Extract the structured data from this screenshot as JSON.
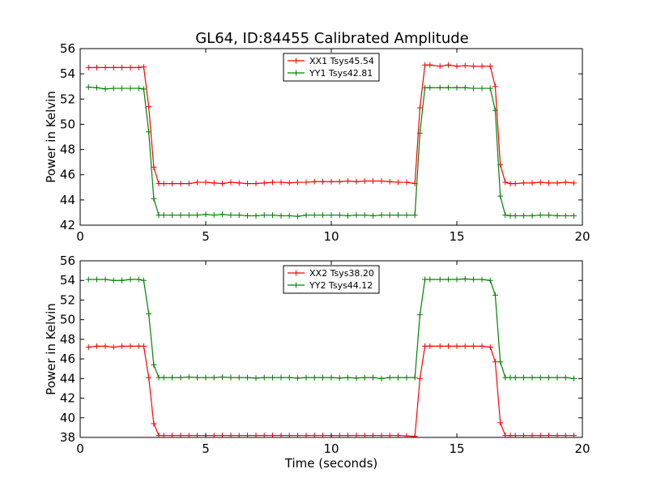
{
  "title": "GL64, ID:84455 Calibrated Amplitude",
  "chart_data": [
    {
      "type": "line",
      "title": "GL64, ID:84455 Calibrated Amplitude",
      "xlabel": "",
      "ylabel": "Power in Kelvin",
      "xlim": [
        0,
        20
      ],
      "ylim": [
        42,
        56
      ],
      "xticks": [
        0,
        5,
        10,
        15,
        20
      ],
      "yticks": [
        42,
        44,
        46,
        48,
        50,
        52,
        54,
        56
      ],
      "legend_position": "upper-center",
      "grid": false,
      "series": [
        {
          "name": "XX1 Tsys45.54",
          "color": "#ff0000",
          "x": [
            0.33,
            0.66,
            1.0,
            1.33,
            1.66,
            2.0,
            2.33,
            2.53,
            2.73,
            2.93,
            3.13,
            3.33,
            3.66,
            4.0,
            4.33,
            4.66,
            5.0,
            5.33,
            5.66,
            6.0,
            6.33,
            6.66,
            7.0,
            7.33,
            7.66,
            8.0,
            8.33,
            8.66,
            9.0,
            9.33,
            9.66,
            10.0,
            10.33,
            10.66,
            11.0,
            11.33,
            11.66,
            12.0,
            12.33,
            12.66,
            13.0,
            13.33,
            13.53,
            13.73,
            13.93,
            14.33,
            14.66,
            15.0,
            15.33,
            15.66,
            16.0,
            16.33,
            16.53,
            16.73,
            16.93,
            17.13,
            17.33,
            17.66,
            18.0,
            18.33,
            18.66,
            19.0,
            19.33,
            19.66
          ],
          "y": [
            54.5,
            54.5,
            54.5,
            54.5,
            54.5,
            54.5,
            54.5,
            54.55,
            51.4,
            46.6,
            45.3,
            45.3,
            45.3,
            45.3,
            45.3,
            45.4,
            45.4,
            45.35,
            45.3,
            45.4,
            45.35,
            45.3,
            45.3,
            45.35,
            45.4,
            45.4,
            45.35,
            45.4,
            45.4,
            45.45,
            45.45,
            45.45,
            45.45,
            45.5,
            45.45,
            45.5,
            45.5,
            45.5,
            45.45,
            45.4,
            45.4,
            45.3,
            51.3,
            54.7,
            54.7,
            54.6,
            54.7,
            54.6,
            54.65,
            54.6,
            54.6,
            54.6,
            53.0,
            46.8,
            45.4,
            45.3,
            45.3,
            45.35,
            45.35,
            45.4,
            45.35,
            45.35,
            45.4,
            45.35
          ]
        },
        {
          "name": "YY1 Tsys42.81",
          "color": "#008000",
          "x": [
            0.33,
            0.66,
            1.0,
            1.33,
            1.66,
            2.0,
            2.33,
            2.53,
            2.73,
            2.93,
            3.13,
            3.33,
            3.66,
            4.0,
            4.33,
            4.66,
            5.0,
            5.33,
            5.66,
            6.0,
            6.33,
            6.66,
            7.0,
            7.33,
            7.66,
            8.0,
            8.33,
            8.66,
            9.0,
            9.33,
            9.66,
            10.0,
            10.33,
            10.66,
            11.0,
            11.33,
            11.66,
            12.0,
            12.33,
            12.66,
            13.0,
            13.33,
            13.53,
            13.73,
            13.93,
            14.33,
            14.66,
            15.0,
            15.33,
            15.66,
            16.0,
            16.33,
            16.53,
            16.73,
            16.93,
            17.13,
            17.33,
            17.66,
            18.0,
            18.33,
            18.66,
            19.0,
            19.33,
            19.66
          ],
          "y": [
            52.95,
            52.9,
            52.8,
            52.85,
            52.85,
            52.85,
            52.85,
            52.8,
            49.4,
            44.1,
            42.8,
            42.8,
            42.8,
            42.8,
            42.8,
            42.8,
            42.85,
            42.8,
            42.85,
            42.8,
            42.8,
            42.75,
            42.75,
            42.8,
            42.8,
            42.75,
            42.75,
            42.7,
            42.8,
            42.8,
            42.8,
            42.8,
            42.8,
            42.75,
            42.8,
            42.8,
            42.75,
            42.8,
            42.8,
            42.8,
            42.8,
            42.8,
            49.3,
            52.9,
            52.9,
            52.9,
            52.9,
            52.9,
            52.9,
            52.85,
            52.85,
            52.85,
            51.1,
            44.3,
            42.8,
            42.75,
            42.75,
            42.75,
            42.75,
            42.8,
            42.8,
            42.75,
            42.75,
            42.75
          ]
        }
      ]
    },
    {
      "type": "line",
      "title": "",
      "xlabel": "Time (seconds)",
      "ylabel": "Power in Kelvin",
      "xlim": [
        0,
        20
      ],
      "ylim": [
        38,
        56
      ],
      "xticks": [
        0,
        5,
        10,
        15,
        20
      ],
      "yticks": [
        38,
        40,
        42,
        44,
        46,
        48,
        50,
        52,
        54,
        56
      ],
      "legend_position": "upper-center",
      "grid": false,
      "series": [
        {
          "name": "XX2 Tsys38.20",
          "color": "#ff0000",
          "x": [
            0.33,
            0.66,
            1.0,
            1.33,
            1.66,
            2.0,
            2.33,
            2.53,
            2.73,
            2.93,
            3.13,
            3.33,
            3.66,
            4.0,
            4.33,
            4.66,
            5.0,
            5.33,
            5.66,
            6.0,
            6.33,
            6.66,
            7.0,
            7.33,
            7.66,
            8.0,
            8.33,
            8.66,
            9.0,
            9.33,
            9.66,
            10.0,
            10.33,
            10.66,
            11.0,
            11.33,
            11.66,
            12.0,
            12.33,
            12.66,
            13.0,
            13.33,
            13.53,
            13.73,
            13.93,
            14.33,
            14.66,
            15.0,
            15.33,
            15.66,
            16.0,
            16.33,
            16.53,
            16.73,
            16.93,
            17.13,
            17.33,
            17.66,
            18.0,
            18.33,
            18.66,
            19.0,
            19.33,
            19.66
          ],
          "y": [
            47.2,
            47.3,
            47.3,
            47.2,
            47.3,
            47.3,
            47.3,
            47.3,
            44.1,
            39.4,
            38.2,
            38.2,
            38.2,
            38.2,
            38.2,
            38.2,
            38.2,
            38.2,
            38.2,
            38.2,
            38.2,
            38.2,
            38.2,
            38.2,
            38.2,
            38.2,
            38.2,
            38.2,
            38.2,
            38.2,
            38.2,
            38.2,
            38.2,
            38.2,
            38.2,
            38.2,
            38.2,
            38.2,
            38.2,
            38.2,
            38.15,
            38.1,
            44.0,
            47.3,
            47.3,
            47.3,
            47.3,
            47.3,
            47.3,
            47.3,
            47.3,
            47.2,
            45.7,
            39.5,
            38.2,
            38.2,
            38.2,
            38.2,
            38.2,
            38.2,
            38.2,
            38.2,
            38.2,
            38.2
          ]
        },
        {
          "name": "YY2 Tsys44.12",
          "color": "#008000",
          "x": [
            0.33,
            0.66,
            1.0,
            1.33,
            1.66,
            2.0,
            2.33,
            2.53,
            2.73,
            2.93,
            3.13,
            3.33,
            3.66,
            4.0,
            4.33,
            4.66,
            5.0,
            5.33,
            5.66,
            6.0,
            6.33,
            6.66,
            7.0,
            7.33,
            7.66,
            8.0,
            8.33,
            8.66,
            9.0,
            9.33,
            9.66,
            10.0,
            10.33,
            10.66,
            11.0,
            11.33,
            11.66,
            12.0,
            12.33,
            12.66,
            13.0,
            13.33,
            13.53,
            13.73,
            13.93,
            14.33,
            14.66,
            15.0,
            15.33,
            15.66,
            16.0,
            16.33,
            16.53,
            16.73,
            16.93,
            17.13,
            17.33,
            17.66,
            18.0,
            18.33,
            18.66,
            19.0,
            19.33,
            19.66
          ],
          "y": [
            54.1,
            54.1,
            54.1,
            54.0,
            54.0,
            54.1,
            54.1,
            54.0,
            50.6,
            45.4,
            44.1,
            44.1,
            44.1,
            44.1,
            44.15,
            44.1,
            44.1,
            44.1,
            44.15,
            44.1,
            44.1,
            44.1,
            44.05,
            44.1,
            44.1,
            44.1,
            44.1,
            44.05,
            44.1,
            44.1,
            44.1,
            44.1,
            44.05,
            44.1,
            44.05,
            44.1,
            44.1,
            44.0,
            44.1,
            44.1,
            44.1,
            44.1,
            50.5,
            54.1,
            54.1,
            54.1,
            54.1,
            54.1,
            54.15,
            54.1,
            54.1,
            54.0,
            52.5,
            45.7,
            44.1,
            44.1,
            44.1,
            44.1,
            44.1,
            44.1,
            44.1,
            44.1,
            44.1,
            44.0
          ]
        }
      ]
    }
  ]
}
